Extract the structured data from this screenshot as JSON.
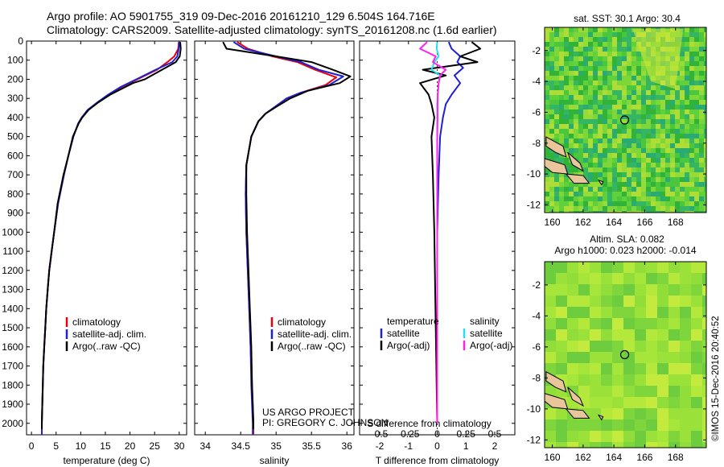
{
  "header": {
    "line1": "Argo profile: AO 5901755_319 09-Dec-2016 20161210_129 6.504S 164.716E",
    "line2": "Climatology: CARS2009. Satellite-adjusted climatology: synTS_20161208.nc (1.6d earlier)"
  },
  "depth_axis": {
    "ticks": [
      0,
      100,
      200,
      300,
      400,
      500,
      600,
      700,
      800,
      900,
      1000,
      1100,
      1200,
      1300,
      1400,
      1500,
      1600,
      1700,
      1800,
      1900,
      2000
    ],
    "range": [
      0,
      2060
    ],
    "inverted": true
  },
  "colors": {
    "climatology": "#e8000b",
    "satellite": "#1f1fd6",
    "argo": "#000000",
    "sat_salinity": "#22e0f0",
    "argo_salinity": "#ff22e6"
  },
  "credit": {
    "line1": "US ARGO PROJECT",
    "line2": "PI: GREGORY C. JOHNSON"
  },
  "timestamp": "©IMOS 15-Dec-2016 20:40:52",
  "chart_data": [
    {
      "id": "temperature",
      "type": "line",
      "xlabel": "temperature (deg C)",
      "xlim": [
        -1,
        31.5
      ],
      "xticks": [
        0,
        5,
        10,
        15,
        20,
        25,
        30
      ],
      "ylim": [
        0,
        2060
      ],
      "legend_entries": [
        "climatology",
        "satellite-adj. clim.",
        "Argo(..raw -QC)"
      ],
      "series": [
        {
          "name": "climatology",
          "color": "#e8000b",
          "x": [
            29.9,
            29.8,
            29.0,
            27.6,
            25.5,
            21.5,
            18.3,
            15.8,
            13.5,
            11.5,
            10.2,
            9.5,
            8.5,
            7.5,
            6.6,
            5.4,
            4.6,
            4.1,
            3.6,
            3.3,
            3.0,
            2.8,
            2.6,
            2.4,
            2.3,
            2.2,
            2.1,
            2.1
          ],
          "y": [
            5,
            40,
            80,
            110,
            150,
            200,
            240,
            280,
            320,
            360,
            400,
            430,
            500,
            600,
            700,
            850,
            1000,
            1100,
            1200,
            1300,
            1400,
            1500,
            1600,
            1700,
            1800,
            1900,
            2000,
            2060
          ]
        },
        {
          "name": "satellite-adj. clim.",
          "color": "#1f1fd6",
          "x": [
            30.0,
            29.9,
            29.6,
            28.6,
            25.2,
            21.3,
            18.1,
            15.6,
            13.4,
            11.4,
            10.2,
            9.5,
            8.5,
            7.5,
            6.6,
            5.4,
            4.6,
            4.1,
            3.6,
            3.3,
            3.0,
            2.8,
            2.6,
            2.4,
            2.3,
            2.2,
            2.1,
            2.1
          ],
          "y": [
            5,
            40,
            80,
            110,
            150,
            200,
            240,
            280,
            320,
            360,
            400,
            430,
            500,
            600,
            700,
            850,
            1000,
            1100,
            1200,
            1300,
            1400,
            1500,
            1600,
            1700,
            1800,
            1900,
            2000,
            2060
          ]
        },
        {
          "name": "Argo(..raw -QC)",
          "color": "#000000",
          "x": [
            30.2,
            30.3,
            30.1,
            29.3,
            26.5,
            23.0,
            20.6,
            16.0,
            13.6,
            11.6,
            10.3,
            9.6,
            8.4,
            7.5,
            6.5,
            5.3,
            4.6,
            4.1,
            3.6,
            3.3,
            3.0,
            2.8,
            2.6,
            2.4,
            2.3,
            2.2,
            2.1,
            2.1
          ],
          "y": [
            5,
            40,
            80,
            110,
            150,
            200,
            220,
            280,
            320,
            360,
            400,
            430,
            500,
            600,
            700,
            850,
            1000,
            1100,
            1200,
            1300,
            1400,
            1500,
            1600,
            1700,
            1800,
            1900,
            2000,
            2030
          ]
        }
      ]
    },
    {
      "id": "salinity",
      "type": "line",
      "xlabel": "salinity",
      "xlim": [
        33.85,
        36.1
      ],
      "xticks": [
        34,
        34.5,
        35,
        35.5,
        36
      ],
      "ylim": [
        0,
        2060
      ],
      "legend_entries": [
        "climatology",
        "satellite-adj. clim.",
        "Argo(..raw -QC)"
      ],
      "series": [
        {
          "name": "climatology",
          "color": "#e8000b",
          "x": [
            34.45,
            34.6,
            34.95,
            35.3,
            35.55,
            35.85,
            35.7,
            35.35,
            35.15,
            35.0,
            34.85,
            34.75,
            34.65,
            34.58,
            34.57,
            34.58,
            34.6,
            34.62,
            34.64,
            34.66,
            34.67,
            34.68,
            34.68
          ],
          "y": [
            5,
            40,
            80,
            110,
            150,
            190,
            230,
            270,
            300,
            340,
            380,
            420,
            500,
            650,
            800,
            1000,
            1200,
            1400,
            1600,
            1800,
            1900,
            2000,
            2060
          ]
        },
        {
          "name": "satellite-adj. clim.",
          "color": "#1f1fd6",
          "x": [
            34.4,
            34.55,
            35.0,
            35.35,
            35.6,
            35.95,
            35.75,
            35.35,
            35.15,
            35.0,
            34.85,
            34.75,
            34.65,
            34.58,
            34.57,
            34.58,
            34.6,
            34.62,
            34.64,
            34.65,
            34.66,
            34.67,
            34.67
          ],
          "y": [
            5,
            40,
            80,
            110,
            150,
            185,
            230,
            270,
            300,
            340,
            380,
            420,
            500,
            650,
            800,
            1000,
            1200,
            1400,
            1600,
            1800,
            1900,
            2000,
            2060
          ]
        },
        {
          "name": "Argo(..raw -QC)",
          "color": "#000000",
          "x": [
            34.25,
            34.3,
            35.0,
            35.5,
            35.8,
            36.05,
            35.9,
            35.45,
            35.2,
            35.02,
            34.85,
            34.75,
            34.65,
            34.58,
            34.58,
            34.59,
            34.61,
            34.63,
            34.65,
            34.66,
            34.67,
            34.68,
            34.68
          ],
          "y": [
            5,
            40,
            80,
            110,
            150,
            185,
            220,
            260,
            300,
            340,
            380,
            420,
            500,
            650,
            800,
            1000,
            1200,
            1400,
            1600,
            1800,
            1900,
            2000,
            2030
          ]
        }
      ]
    },
    {
      "id": "difference",
      "type": "line",
      "xlabel": "T difference from climatology",
      "xlabel_top": "S difference from climatology",
      "xlim": [
        -2.7,
        2.7
      ],
      "xticks": [
        -2,
        -1,
        0,
        1,
        2
      ],
      "xticks_top": [
        "-0.5",
        "-0.25",
        "0",
        "0.25",
        "0.5"
      ],
      "ylim": [
        0,
        2060
      ],
      "legend_headers": [
        "temperature",
        "salinity"
      ],
      "legend_entries": [
        "satellite",
        "Argo(-adj)",
        "satellite",
        "Argo(-adj)"
      ],
      "series": [
        {
          "name": "satellite",
          "quantity": "temperature",
          "color": "#1f1fd6",
          "x": [
            0.4,
            0.5,
            0.8,
            0.7,
            0.9,
            0.6,
            0.8,
            0.5,
            0.3,
            0.2,
            0.1,
            0.05,
            0.0,
            0.0,
            0.0
          ],
          "y": [
            5,
            40,
            80,
            110,
            140,
            180,
            220,
            280,
            330,
            400,
            500,
            700,
            1000,
            1500,
            2000
          ]
        },
        {
          "name": "Argo(-adj)",
          "quantity": "temperature",
          "color": "#000000",
          "x": [
            1.2,
            1.5,
            0.8,
            1.4,
            -0.5,
            0.3,
            -0.6,
            -0.3,
            -0.2,
            -0.1,
            -0.2,
            -0.15,
            -0.1,
            -0.05,
            0.0
          ],
          "y": [
            5,
            40,
            80,
            110,
            150,
            180,
            220,
            280,
            330,
            400,
            500,
            700,
            1000,
            1500,
            2000
          ]
        },
        {
          "name": "satellite",
          "quantity": "salinity",
          "color": "#22e0f0",
          "x": [
            0.0,
            -0.02,
            0.05,
            -0.1,
            -0.2,
            0.1,
            0.05,
            0.02,
            0.0,
            0.0,
            0.0,
            0.0,
            0.0,
            0.0,
            0.0
          ],
          "y": [
            5,
            40,
            80,
            110,
            150,
            180,
            220,
            280,
            330,
            400,
            500,
            700,
            1000,
            1500,
            2000
          ]
        },
        {
          "name": "Argo(-adj)",
          "quantity": "salinity",
          "color": "#ff22e6",
          "x": [
            -0.35,
            -0.6,
            -0.05,
            -0.15,
            0.3,
            0.1,
            0.05,
            0.02,
            0.01,
            0.01,
            0.0,
            0.0,
            0.0,
            0.0,
            0.0
          ],
          "y": [
            5,
            40,
            80,
            110,
            150,
            180,
            220,
            280,
            330,
            400,
            500,
            700,
            1000,
            1500,
            2000
          ]
        }
      ]
    },
    {
      "id": "sst-map",
      "type": "heatmap",
      "title": "sat. SST: 30.1  Argo: 30.4",
      "xlim": [
        159.5,
        170
      ],
      "ylim": [
        -12.5,
        -0.5
      ],
      "xticks": [
        160,
        162,
        164,
        166,
        168
      ],
      "yticks": [
        -2,
        -4,
        -6,
        -8,
        -10,
        -12
      ],
      "marker": {
        "x": 164.7,
        "y": -6.5
      }
    },
    {
      "id": "sla-map",
      "type": "heatmap",
      "title": "Altim. SLA: 0.082",
      "subtitle": "Argo h1000: 0.023 h2000: -0.014",
      "xlim": [
        159.5,
        170
      ],
      "ylim": [
        -12.5,
        -0.5
      ],
      "xticks": [
        160,
        162,
        164,
        166,
        168
      ],
      "yticks": [
        -2,
        -4,
        -6,
        -8,
        -10,
        -12
      ],
      "marker": {
        "x": 164.7,
        "y": -6.5
      }
    }
  ]
}
